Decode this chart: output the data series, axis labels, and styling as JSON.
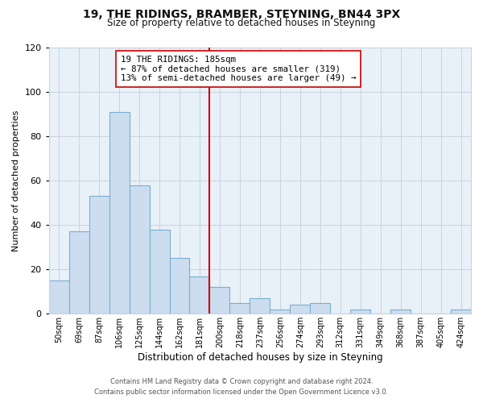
{
  "title": "19, THE RIDINGS, BRAMBER, STEYNING, BN44 3PX",
  "subtitle": "Size of property relative to detached houses in Steyning",
  "xlabel": "Distribution of detached houses by size in Steyning",
  "ylabel": "Number of detached properties",
  "bar_labels": [
    "50sqm",
    "69sqm",
    "87sqm",
    "106sqm",
    "125sqm",
    "144sqm",
    "162sqm",
    "181sqm",
    "200sqm",
    "218sqm",
    "237sqm",
    "256sqm",
    "274sqm",
    "293sqm",
    "312sqm",
    "331sqm",
    "349sqm",
    "368sqm",
    "387sqm",
    "405sqm",
    "424sqm"
  ],
  "bar_values": [
    15,
    37,
    53,
    91,
    58,
    38,
    25,
    17,
    12,
    5,
    7,
    2,
    4,
    5,
    0,
    2,
    0,
    2,
    0,
    0,
    2
  ],
  "bar_color": "#ccddf0",
  "bar_edgecolor": "#7aaed0",
  "vline_x_index": 7.5,
  "vline_color": "#cc0000",
  "annotation_line1": "19 THE RIDINGS: 185sqm",
  "annotation_line2": "← 87% of detached houses are smaller (319)",
  "annotation_line3": "13% of semi-detached houses are larger (49) →",
  "annotation_box_edgecolor": "#cc0000",
  "annotation_box_facecolor": "#ffffff",
  "ylim": [
    0,
    120
  ],
  "yticks": [
    0,
    20,
    40,
    60,
    80,
    100,
    120
  ],
  "footer_line1": "Contains HM Land Registry data © Crown copyright and database right 2024.",
  "footer_line2": "Contains public sector information licensed under the Open Government Licence v3.0.",
  "bg_color": "#ffffff",
  "plot_bg_color": "#e8f0f8",
  "grid_color": "#c8d4e0"
}
